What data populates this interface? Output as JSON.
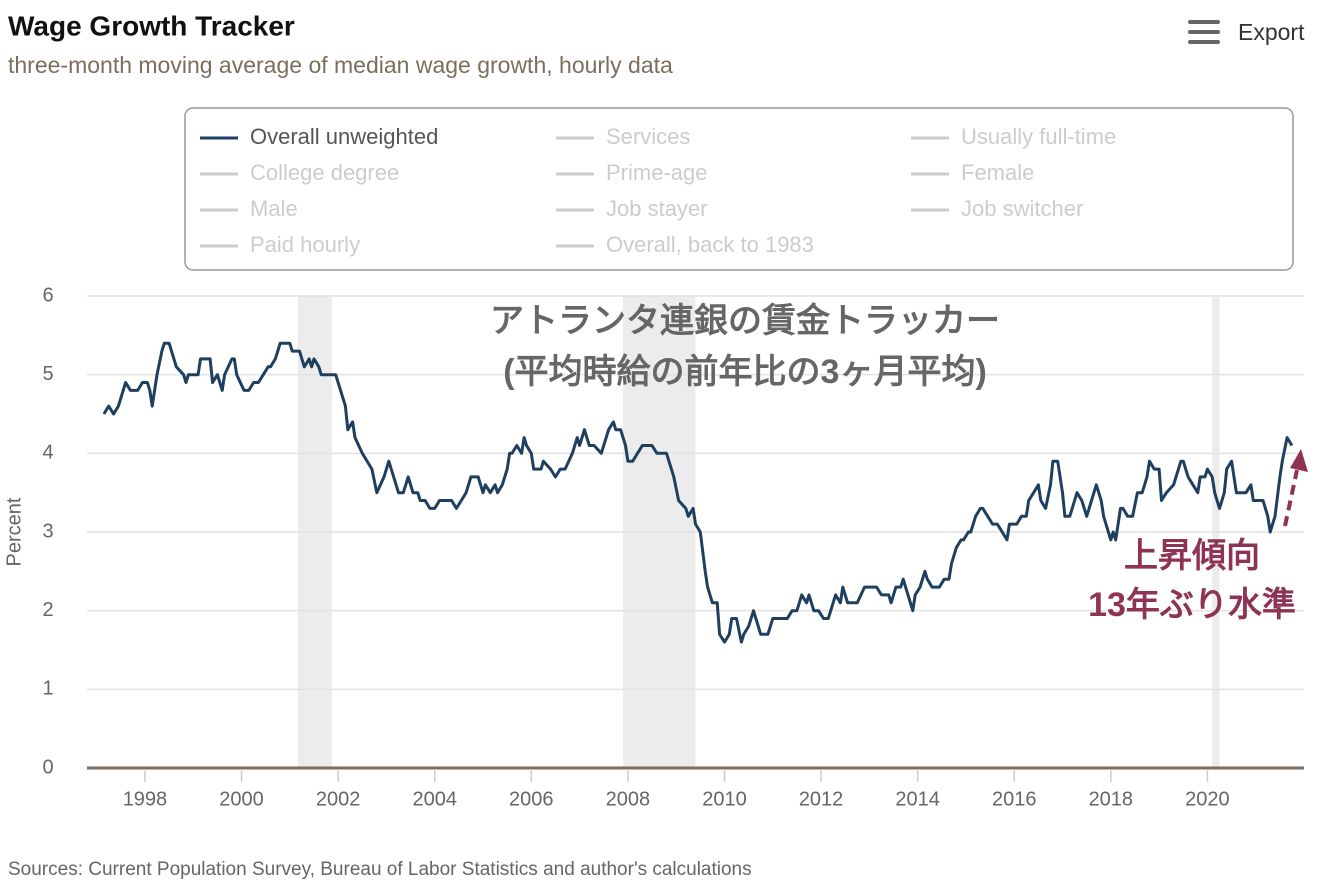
{
  "chart_data": {
    "type": "line",
    "title": "Wage Growth Tracker",
    "subtitle": "three-month moving average of median wage growth, hourly data",
    "y_label": "Percent",
    "source": "Sources: Current Population Survey, Bureau of Labor Statistics and author's calculations",
    "export_label": "Export",
    "x": [
      1997.15,
      1997.25,
      1997.35,
      1997.45,
      1997.55,
      1997.6,
      1997.7,
      1997.85,
      1997.95,
      1998.05,
      1998.1,
      1998.15,
      1998.25,
      1998.35,
      1998.4,
      1998.5,
      1998.55,
      1998.65,
      1998.8,
      1998.85,
      1998.9,
      1999.1,
      1999.15,
      1999.35,
      1999.4,
      1999.5,
      1999.6,
      1999.65,
      1999.8,
      1999.85,
      1999.9,
      2000.05,
      2000.15,
      2000.25,
      2000.35,
      2000.45,
      2000.55,
      2000.6,
      2000.7,
      2000.75,
      2000.8,
      2001.0,
      2001.05,
      2001.2,
      2001.25,
      2001.3,
      2001.4,
      2001.45,
      2001.5,
      2001.6,
      2001.65,
      2001.8,
      2001.95,
      2002.0,
      2002.1,
      2002.15,
      2002.2,
      2002.3,
      2002.35,
      2002.5,
      2002.7,
      2002.8,
      2002.95,
      2003.05,
      2003.2,
      2003.25,
      2003.35,
      2003.45,
      2003.55,
      2003.65,
      2003.7,
      2003.8,
      2003.9,
      2004.0,
      2004.1,
      2004.25,
      2004.35,
      2004.45,
      2004.55,
      2004.65,
      2004.75,
      2004.85,
      2004.9,
      2005.0,
      2005.05,
      2005.15,
      2005.25,
      2005.3,
      2005.4,
      2005.5,
      2005.55,
      2005.6,
      2005.7,
      2005.8,
      2005.85,
      2005.9,
      2006.0,
      2006.05,
      2006.2,
      2006.25,
      2006.4,
      2006.5,
      2006.6,
      2006.7,
      2006.85,
      2006.95,
      2007.0,
      2007.1,
      2007.2,
      2007.3,
      2007.45,
      2007.55,
      2007.6,
      2007.7,
      2007.75,
      2007.85,
      2007.95,
      2008.0,
      2008.1,
      2008.2,
      2008.3,
      2008.5,
      2008.6,
      2008.8,
      2008.9,
      2008.95,
      2009.05,
      2009.2,
      2009.25,
      2009.35,
      2009.4,
      2009.5,
      2009.6,
      2009.65,
      2009.75,
      2009.85,
      2009.9,
      2010.0,
      2010.1,
      2010.15,
      2010.25,
      2010.35,
      2010.4,
      2010.5,
      2010.6,
      2010.65,
      2010.75,
      2010.9,
      2011.0,
      2011.15,
      2011.3,
      2011.4,
      2011.5,
      2011.6,
      2011.7,
      2011.75,
      2011.85,
      2011.95,
      2012.05,
      2012.15,
      2012.2,
      2012.3,
      2012.4,
      2012.45,
      2012.55,
      2012.75,
      2012.9,
      2013.05,
      2013.15,
      2013.25,
      2013.4,
      2013.45,
      2013.55,
      2013.65,
      2013.7,
      2013.8,
      2013.9,
      2013.95,
      2014.05,
      2014.15,
      2014.2,
      2014.3,
      2014.45,
      2014.55,
      2014.65,
      2014.7,
      2014.8,
      2014.9,
      2014.95,
      2015.05,
      2015.1,
      2015.2,
      2015.3,
      2015.35,
      2015.45,
      2015.55,
      2015.65,
      2015.75,
      2015.85,
      2015.9,
      2016.05,
      2016.15,
      2016.25,
      2016.3,
      2016.4,
      2016.5,
      2016.55,
      2016.65,
      2016.75,
      2016.8,
      2016.9,
      2017.0,
      2017.05,
      2017.15,
      2017.25,
      2017.3,
      2017.4,
      2017.5,
      2017.55,
      2017.7,
      2017.8,
      2017.85,
      2018.0,
      2018.05,
      2018.1,
      2018.2,
      2018.25,
      2018.35,
      2018.45,
      2018.55,
      2018.65,
      2018.75,
      2018.8,
      2018.9,
      2019.0,
      2019.05,
      2019.15,
      2019.3,
      2019.35,
      2019.45,
      2019.5,
      2019.6,
      2019.7,
      2019.8,
      2019.85,
      2019.95,
      2020.0,
      2020.1,
      2020.15,
      2020.25,
      2020.35,
      2020.4,
      2020.5,
      2020.6,
      2020.8,
      2020.9,
      2020.95,
      2021.15,
      2021.25,
      2021.3,
      2021.4,
      2021.5,
      2021.55,
      2021.65,
      2021.75
    ],
    "series": [
      {
        "name": "Overall unweighted",
        "color": "#1f3f5f",
        "values": [
          4.5,
          4.6,
          4.5,
          4.6,
          4.8,
          4.9,
          4.8,
          4.8,
          4.9,
          4.9,
          4.8,
          4.6,
          5.0,
          5.3,
          5.4,
          5.4,
          5.3,
          5.1,
          5.0,
          4.9,
          5.0,
          5.0,
          5.2,
          5.2,
          4.9,
          5.0,
          4.8,
          5.0,
          5.2,
          5.2,
          5.0,
          4.8,
          4.8,
          4.9,
          4.9,
          5.0,
          5.1,
          5.1,
          5.2,
          5.3,
          5.4,
          5.4,
          5.3,
          5.3,
          5.2,
          5.1,
          5.2,
          5.1,
          5.2,
          5.1,
          5.0,
          5.0,
          5.0,
          4.9,
          4.7,
          4.6,
          4.3,
          4.4,
          4.2,
          4.0,
          3.8,
          3.5,
          3.7,
          3.9,
          3.6,
          3.5,
          3.5,
          3.7,
          3.5,
          3.5,
          3.4,
          3.4,
          3.3,
          3.3,
          3.4,
          3.4,
          3.4,
          3.3,
          3.4,
          3.5,
          3.7,
          3.7,
          3.7,
          3.5,
          3.6,
          3.5,
          3.6,
          3.5,
          3.6,
          3.8,
          4.0,
          4.0,
          4.1,
          4.0,
          4.2,
          4.1,
          4.0,
          3.8,
          3.8,
          3.9,
          3.8,
          3.7,
          3.8,
          3.8,
          4.0,
          4.2,
          4.1,
          4.3,
          4.1,
          4.1,
          4.0,
          4.2,
          4.3,
          4.4,
          4.3,
          4.3,
          4.1,
          3.9,
          3.9,
          4.0,
          4.1,
          4.1,
          4.0,
          4.0,
          3.8,
          3.7,
          3.4,
          3.3,
          3.2,
          3.3,
          3.1,
          3.0,
          2.5,
          2.3,
          2.1,
          2.1,
          1.7,
          1.6,
          1.7,
          1.9,
          1.9,
          1.6,
          1.7,
          1.8,
          2.0,
          1.9,
          1.7,
          1.7,
          1.9,
          1.9,
          1.9,
          2.0,
          2.0,
          2.2,
          2.1,
          2.2,
          2.0,
          2.0,
          1.9,
          1.9,
          2.0,
          2.2,
          2.1,
          2.3,
          2.1,
          2.1,
          2.3,
          2.3,
          2.3,
          2.2,
          2.2,
          2.1,
          2.3,
          2.3,
          2.4,
          2.2,
          2.0,
          2.2,
          2.3,
          2.5,
          2.4,
          2.3,
          2.3,
          2.4,
          2.4,
          2.6,
          2.8,
          2.9,
          2.9,
          3.0,
          3.0,
          3.2,
          3.3,
          3.3,
          3.2,
          3.1,
          3.1,
          3.0,
          2.9,
          3.1,
          3.1,
          3.2,
          3.2,
          3.4,
          3.5,
          3.6,
          3.4,
          3.3,
          3.6,
          3.9,
          3.9,
          3.5,
          3.2,
          3.2,
          3.4,
          3.5,
          3.4,
          3.2,
          3.3,
          3.6,
          3.4,
          3.2,
          2.9,
          3.0,
          2.9,
          3.3,
          3.3,
          3.2,
          3.2,
          3.5,
          3.5,
          3.7,
          3.9,
          3.8,
          3.8,
          3.4,
          3.5,
          3.6,
          3.7,
          3.9,
          3.9,
          3.7,
          3.6,
          3.5,
          3.7,
          3.7,
          3.8,
          3.7,
          3.5,
          3.3,
          3.5,
          3.8,
          3.9,
          3.5,
          3.5,
          3.6,
          3.4,
          3.4,
          3.2,
          3.0,
          3.2,
          3.7,
          3.9,
          4.2,
          4.1
        ]
      }
    ],
    "legend_items": [
      {
        "name": "Services",
        "color": "#cccccc"
      },
      {
        "name": "Usually full-time",
        "color": "#cccccc"
      },
      {
        "name": "College degree",
        "color": "#cccccc"
      },
      {
        "name": "Prime-age",
        "color": "#cccccc"
      },
      {
        "name": "Female",
        "color": "#cccccc"
      },
      {
        "name": "Male",
        "color": "#cccccc"
      },
      {
        "name": "Job stayer",
        "color": "#cccccc"
      },
      {
        "name": "Job switcher",
        "color": "#cccccc"
      },
      {
        "name": "Paid hourly",
        "color": "#cccccc"
      },
      {
        "name": "Overall, back to 1983",
        "color": "#cccccc"
      }
    ],
    "recessions": [
      [
        2001.17,
        2001.87
      ],
      [
        2007.9,
        2009.4
      ],
      [
        2020.1,
        2020.25
      ]
    ],
    "recession_color": "#ececec",
    "xlim": [
      1996.8,
      2022.0
    ],
    "ylim": [
      0,
      6
    ],
    "xticks": [
      1998,
      2000,
      2002,
      2004,
      2006,
      2008,
      2010,
      2012,
      2014,
      2016,
      2018,
      2020
    ],
    "yticks": [
      0,
      1,
      2,
      3,
      4,
      5,
      6
    ],
    "grid": true,
    "annotations": {
      "main": [
        "アトランタ連銀の賃金トラッカー",
        "(平均時給の前年比の3ヶ月平均)"
      ],
      "callout": [
        "上昇傾向",
        "13年ぶり水準"
      ],
      "callout_color": "#8e3354"
    }
  }
}
